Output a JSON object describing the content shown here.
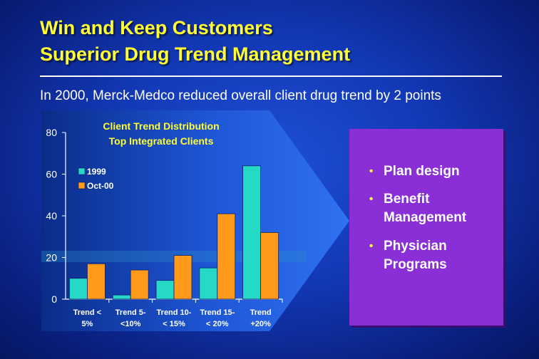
{
  "slide": {
    "title_line1": "Win and Keep Customers",
    "title_line2": "Superior Drug Trend Management",
    "subtitle": "In 2000, Merck-Medco reduced overall client drug trend by 2 points"
  },
  "bullets": [
    {
      "text": "Plan design"
    },
    {
      "text": "Benefit Management"
    },
    {
      "text": "Physician Programs"
    }
  ],
  "colors": {
    "series_1999": "#26d9c6",
    "series_oct00": "#ff9a1a",
    "chart_title": "#ffff33",
    "bullet_box": "#8a2fd6"
  },
  "chart_data": {
    "type": "bar",
    "title": "Client Trend Distribution",
    "subtitle": "Top Integrated Clients",
    "categories": [
      "Trend < 5%",
      "Trend 5- <10%",
      "Trend 10- < 15%",
      "Trend 15- < 20%",
      "Trend +20%"
    ],
    "category_lines": [
      [
        "Trend <",
        "5%"
      ],
      [
        "Trend  5-",
        "<10%"
      ],
      [
        "Trend 10-",
        "< 15%"
      ],
      [
        "Trend 15-",
        "< 20%"
      ],
      [
        "Trend",
        "+20%"
      ]
    ],
    "series": [
      {
        "name": "1999",
        "values": [
          10,
          2,
          9,
          15,
          64
        ]
      },
      {
        "name": "Oct-00",
        "values": [
          17,
          14,
          21,
          41,
          32
        ]
      }
    ],
    "ylim": [
      0,
      80
    ],
    "yticks": [
      0,
      20,
      40,
      60,
      80
    ],
    "legend_position": "top-left",
    "grid": false
  }
}
